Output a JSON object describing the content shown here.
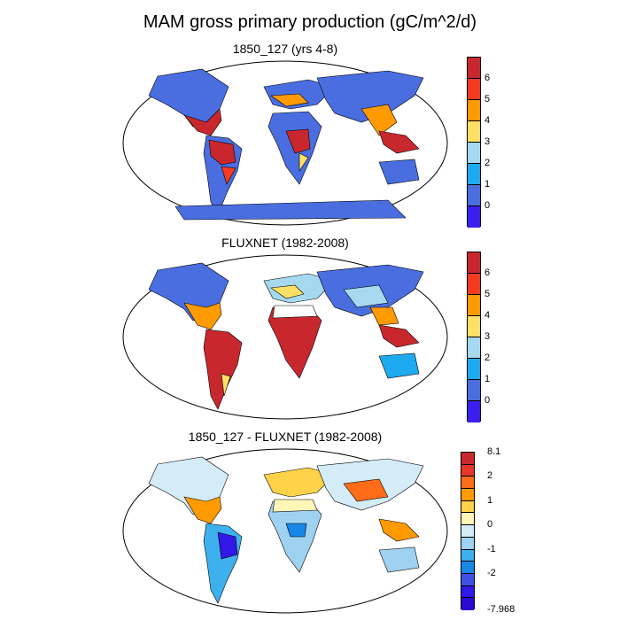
{
  "title": "MAM gross primary production (gC/m^2/d)",
  "panels": [
    {
      "title": "1850_127 (yrs 4-8)",
      "colorbar": {
        "colors": [
          "#c8282d",
          "#f53b1f",
          "#ff9a00",
          "#ffe066",
          "#a6d8f0",
          "#1eaaee",
          "#4a6ee0",
          "#3a1fee"
        ],
        "labels": [
          "6",
          "5",
          "4",
          "3",
          "2",
          "1",
          "0"
        ]
      }
    },
    {
      "title": "FLUXNET (1982-2008)",
      "colorbar": {
        "colors": [
          "#c8282d",
          "#f53b1f",
          "#ff9a00",
          "#ffe066",
          "#a6d8f0",
          "#1eaaee",
          "#4a6ee0",
          "#3a1fee"
        ],
        "labels": [
          "6",
          "5",
          "4",
          "3",
          "2",
          "1",
          "0"
        ]
      }
    },
    {
      "title": "1850_127 - FLUXNET (1982-2008)",
      "colorbar": {
        "colors": [
          "#c8282d",
          "#e8362b",
          "#ff6d18",
          "#ff9a00",
          "#ffd24a",
          "#fff6b8",
          "#d4ecf8",
          "#9fd2f0",
          "#3fb0ee",
          "#1886e6",
          "#3d52e2",
          "#3218e6",
          "#2a0ad0"
        ],
        "labels": [
          "8.1",
          "2",
          "1",
          "0",
          "-1",
          "-2",
          "-7.968"
        ]
      }
    }
  ]
}
